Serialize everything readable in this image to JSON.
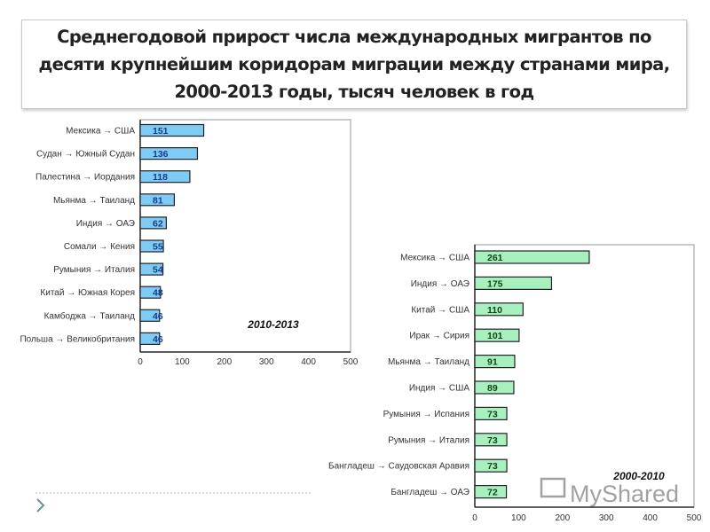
{
  "title": "Среднегодовой прирост числа международных мигрантов по десяти крупнейшим коридорам миграции между странами мира, 2000-2013 годы, тысяч человек в год",
  "watermark": "MyShared",
  "chart_data": [
    {
      "type": "bar",
      "orientation": "horizontal",
      "title": "2010-2013",
      "categories": [
        "Мексика → США",
        "Судан → Южный Судан",
        "Палестина → Иордания",
        "Мьянма → Таиланд",
        "Индия → ОАЭ",
        "Сомали → Кения",
        "Румыния → Италия",
        "Китай → Южная Корея",
        "Камбоджа → Таиланд",
        "Польша → Великобритания"
      ],
      "values": [
        151,
        136,
        118,
        81,
        62,
        55,
        54,
        48,
        46,
        46
      ],
      "xlim": [
        0,
        500
      ],
      "xticks": [
        0,
        100,
        200,
        300,
        400,
        500
      ],
      "bar_color": "#7ecbf5",
      "value_color": "#1a3a8a",
      "grid": false
    },
    {
      "type": "bar",
      "orientation": "horizontal",
      "title": "2000-2010",
      "categories": [
        "Мексика → США",
        "Индия → ОАЭ",
        "Китай → США",
        "Ирак → Сирия",
        "Мьянма → Таиланд",
        "Индия → США",
        "Румыния → Испания",
        "Румыния → Италия",
        "Бангладеш → Саудовская Аравия",
        "Бангладеш → ОАЭ"
      ],
      "values": [
        261,
        175,
        110,
        101,
        91,
        89,
        73,
        73,
        73,
        72
      ],
      "xlim": [
        0,
        500
      ],
      "xticks": [
        0,
        100,
        200,
        300,
        400,
        500
      ],
      "bar_color": "#a8f0c0",
      "value_color": "#114411",
      "grid": false
    }
  ]
}
